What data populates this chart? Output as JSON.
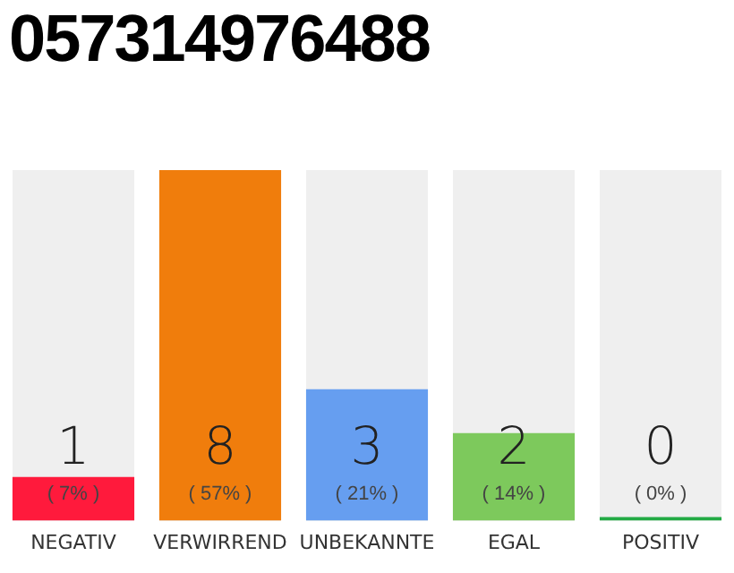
{
  "chart_data": {
    "type": "bar",
    "title": "057314976488",
    "categories": [
      "NEGATIV",
      "VERWIRREND",
      "UNBEKANNTE",
      "EGAL",
      "POSITIV"
    ],
    "values": [
      1,
      8,
      3,
      2,
      0
    ],
    "colors": [
      "#ff1a3c",
      "#f07d0c",
      "#669ef0",
      "#7dc95c",
      "#22aa44"
    ],
    "annotations": [
      "( 7% )",
      "( 57% )",
      "( 21% )",
      "( 14% )",
      "( 0% )"
    ],
    "data_labels": true,
    "tick_labels": "x",
    "grid": false,
    "legend": false
  }
}
